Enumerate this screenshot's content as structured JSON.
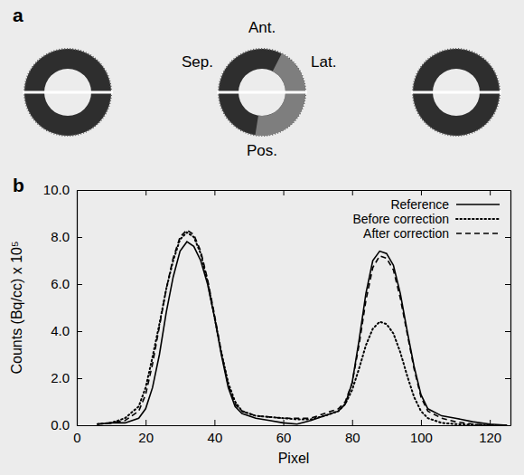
{
  "panel_a": {
    "letter": "a",
    "anterior": "Ant.",
    "septal": "Sep.",
    "lateral": "Lat.",
    "posterior": "Pos."
  },
  "panel_b": {
    "letter": "b"
  },
  "chart_data": {
    "type": "line",
    "x_label": "Pixel",
    "y_label": "Counts (Bq/cc) x 10⁵",
    "x": [
      6,
      10,
      14,
      18,
      20,
      22,
      24,
      26,
      28,
      30,
      32,
      34,
      36,
      38,
      40,
      42,
      44,
      46,
      48,
      52,
      56,
      60,
      64,
      68,
      72,
      76,
      78,
      80,
      82,
      84,
      86,
      88,
      90,
      92,
      94,
      96,
      98,
      100,
      102,
      106,
      110,
      115,
      120,
      125
    ],
    "series": [
      {
        "name": "Reference",
        "color": "#000000",
        "line_style": "solid",
        "values": [
          0.05,
          0.1,
          0.1,
          0.3,
          0.7,
          1.6,
          3.0,
          4.8,
          6.3,
          7.4,
          7.8,
          7.6,
          7.0,
          6.0,
          4.6,
          3.0,
          1.6,
          0.8,
          0.5,
          0.3,
          0.2,
          0.1,
          0.05,
          0.2,
          0.4,
          0.6,
          0.9,
          1.8,
          3.6,
          5.6,
          7.0,
          7.4,
          7.3,
          6.8,
          5.6,
          4.0,
          2.5,
          1.3,
          0.7,
          0.4,
          0.3,
          0.15,
          0.05,
          0.0
        ]
      },
      {
        "name": "Before correction",
        "color": "#000000",
        "line_style": "dotted",
        "values": [
          0.05,
          0.1,
          0.3,
          0.8,
          1.6,
          2.9,
          4.3,
          5.8,
          7.0,
          7.9,
          8.2,
          8.0,
          7.3,
          6.1,
          4.6,
          3.1,
          1.8,
          1.0,
          0.6,
          0.4,
          0.35,
          0.3,
          0.25,
          0.25,
          0.4,
          0.6,
          0.9,
          1.5,
          2.4,
          3.4,
          4.1,
          4.4,
          4.3,
          3.9,
          3.1,
          2.1,
          1.2,
          0.6,
          0.3,
          0.1,
          0.05,
          0.02,
          0.0,
          0.0
        ]
      },
      {
        "name": "After correction",
        "color": "#000000",
        "line_style": "dashed",
        "values": [
          0.05,
          0.1,
          0.2,
          0.6,
          1.3,
          2.6,
          4.2,
          5.8,
          7.1,
          8.0,
          8.3,
          8.1,
          7.4,
          6.2,
          4.7,
          3.1,
          1.7,
          0.9,
          0.6,
          0.4,
          0.35,
          0.3,
          0.3,
          0.3,
          0.5,
          0.7,
          1.0,
          1.8,
          3.4,
          5.3,
          6.7,
          7.2,
          7.1,
          6.6,
          5.4,
          3.9,
          2.4,
          1.2,
          0.6,
          0.3,
          0.15,
          0.05,
          0.0,
          0.0
        ]
      }
    ],
    "xlim": [
      0,
      126
    ],
    "xticks": [
      0,
      20,
      40,
      60,
      80,
      100,
      120
    ],
    "ylim": [
      0,
      10
    ],
    "yticks": [
      {
        "value": 0,
        "label": "0.0"
      },
      {
        "value": 2,
        "label": "2.0"
      },
      {
        "value": 4,
        "label": "4.0"
      },
      {
        "value": 6,
        "label": "6.0"
      },
      {
        "value": 8,
        "label": "8.0"
      },
      {
        "value": 10,
        "label": "10.0"
      }
    ],
    "grid": false,
    "legend": "upper right"
  }
}
